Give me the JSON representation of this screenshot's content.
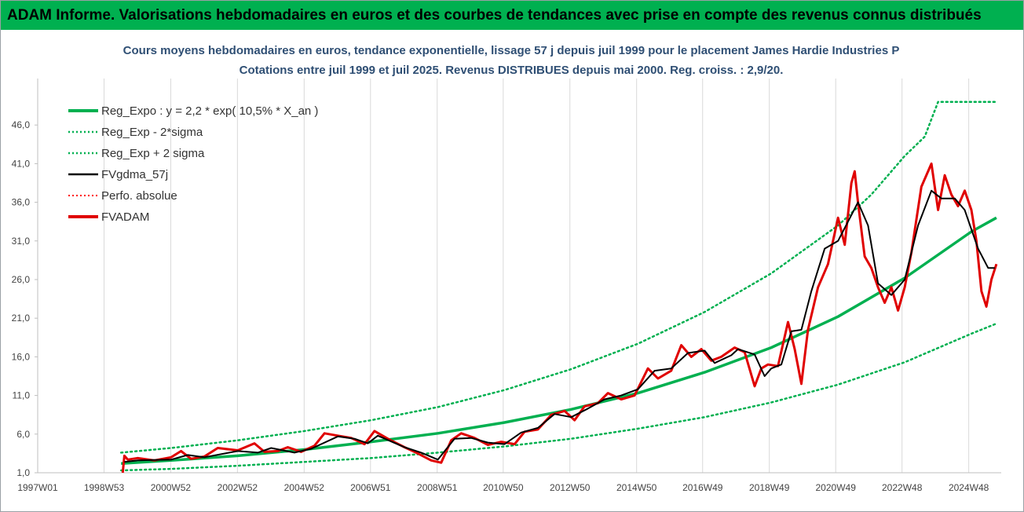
{
  "banner": {
    "title": "ADAM Informe. Valorisations hebdomadaires en euros et des courbes de tendances avec prise en compte des revenus connus distribués"
  },
  "chart_data": {
    "type": "line",
    "title": "Cours moyens hebdomadaires en euros, tendance exponentielle, lissage 57 j depuis juil 1999 pour le placement James Hardie Industries P",
    "subtitle": "Cotations entre juil 1999 et juil 2025. Revenus DISTRIBUES depuis mai 2000. Reg. croiss. : 2,9/20.",
    "xlabel": "",
    "ylabel": "",
    "x_tick_labels": [
      "1997W01",
      "1998W53",
      "2000W52",
      "2002W52",
      "2004W52",
      "2006W51",
      "2008W51",
      "2010W50",
      "2012W50",
      "2014W50",
      "2016W49",
      "2018W49",
      "2020W49",
      "2022W48",
      "2024W48"
    ],
    "x_tick_years": [
      1997.0,
      1998.99,
      2000.99,
      2002.99,
      2004.99,
      2006.98,
      2008.98,
      2010.96,
      2012.96,
      2014.96,
      2016.94,
      2018.94,
      2020.93,
      2022.92,
      2024.92
    ],
    "x_range": [
      1997.0,
      2025.8
    ],
    "y_ticks": [
      1.0,
      6.0,
      11.0,
      16.0,
      21.0,
      26.0,
      31.0,
      36.0,
      41.0,
      46.0
    ],
    "y_tick_labels": [
      "1,0",
      "6,0",
      "11,0",
      "16,0",
      "21,0",
      "26,0",
      "31,0",
      "36,0",
      "41,0",
      "46,0"
    ],
    "ylim": [
      1.0,
      51.0
    ],
    "grid": "vertical",
    "legend_position": "top-left",
    "series": [
      {
        "name": "Reg_Expo : y = 2,2 * exp( 10,5% *  X_an )",
        "color": "#00b050",
        "style": "solid",
        "width": 3.5,
        "x": [
          1999.5,
          2001,
          2003,
          2005,
          2007,
          2009,
          2011,
          2013,
          2015,
          2017,
          2019,
          2021,
          2023,
          2025,
          2025.75
        ],
        "values": [
          2.2,
          2.6,
          3.2,
          4.0,
          5.0,
          6.1,
          7.5,
          9.2,
          11.3,
          14.0,
          17.2,
          21.2,
          26.2,
          32.2,
          34.0
        ]
      },
      {
        "name": "Reg_Exp - 2*sigma",
        "color": "#00b050",
        "style": "dotted",
        "width": 2.5,
        "x": [
          1999.5,
          2001,
          2003,
          2005,
          2007,
          2009,
          2011,
          2013,
          2015,
          2017,
          2019,
          2021,
          2023,
          2025,
          2025.75
        ],
        "values": [
          1.3,
          1.5,
          1.9,
          2.4,
          2.9,
          3.6,
          4.4,
          5.4,
          6.7,
          8.2,
          10.1,
          12.4,
          15.3,
          19.0,
          20.3
        ]
      },
      {
        "name": "Reg_Exp + 2 sigma",
        "color": "#00b050",
        "style": "dotted",
        "width": 2.5,
        "x": [
          1999.5,
          2001,
          2003,
          2005,
          2007,
          2009,
          2011,
          2013,
          2015,
          2017,
          2019,
          2021,
          2022,
          2023,
          2023.6,
          2024,
          2025,
          2025.75
        ],
        "values": [
          3.6,
          4.2,
          5.2,
          6.4,
          7.8,
          9.5,
          11.7,
          14.4,
          17.7,
          21.8,
          26.8,
          33.0,
          37.0,
          42.0,
          44.5,
          49.0,
          49.0,
          49.0
        ]
      },
      {
        "name": "FVgdma_57j",
        "color": "#000000",
        "style": "solid",
        "width": 2,
        "x": [
          1999.6,
          2000,
          2001,
          2001.5,
          2002,
          2003,
          2003.6,
          2004,
          2004.7,
          2005.2,
          2006,
          2006.5,
          2006.9,
          2007.2,
          2008,
          2008.5,
          2009,
          2009.5,
          2010,
          2010.5,
          2011,
          2011.5,
          2012,
          2012.5,
          2013,
          2013.5,
          2014,
          2014.5,
          2015,
          2015.5,
          2016,
          2016.5,
          2017,
          2017.3,
          2017.8,
          2018,
          2018.5,
          2018.8,
          2019,
          2019.3,
          2019.6,
          2019.9,
          2020.2,
          2020.6,
          2021,
          2021.3,
          2021.6,
          2021.9,
          2022.2,
          2022.6,
          2023,
          2023.4,
          2023.8,
          2024.1,
          2024.5,
          2024.8,
          2025.2,
          2025.5,
          2025.7
        ],
        "values": [
          2.4,
          2.6,
          2.7,
          3.3,
          3.0,
          3.8,
          3.6,
          4.2,
          3.6,
          4.1,
          5.7,
          5.4,
          4.8,
          5.8,
          4.3,
          3.6,
          2.7,
          5.4,
          5.5,
          4.9,
          4.7,
          6.2,
          6.8,
          8.6,
          8.2,
          9.3,
          10.5,
          11.0,
          11.8,
          14.2,
          14.5,
          16.5,
          16.8,
          15.2,
          16.2,
          17.0,
          16.3,
          13.5,
          14.5,
          15.0,
          19.3,
          19.5,
          24.5,
          30.0,
          31.0,
          33.5,
          36.0,
          33.0,
          25.5,
          24.0,
          26.0,
          33.0,
          37.5,
          36.5,
          36.5,
          35.0,
          30.0,
          27.5,
          27.5
        ]
      },
      {
        "name": "Perfo. absolue",
        "color": "#ff0000",
        "style": "dotted",
        "width": 2,
        "x": [],
        "values": []
      },
      {
        "name": "FVADAM",
        "color": "#e00000",
        "style": "solid",
        "width": 3,
        "x": [
          1999.55,
          1999.6,
          1999.7,
          2000,
          2000.5,
          2001,
          2001.3,
          2001.6,
          2002,
          2002.4,
          2003,
          2003.5,
          2003.8,
          2004.2,
          2004.5,
          2004.9,
          2005.3,
          2005.6,
          2006,
          2006.4,
          2006.8,
          2007.1,
          2007.5,
          2008,
          2008.4,
          2008.8,
          2009.1,
          2009.4,
          2009.7,
          2010.1,
          2010.5,
          2010.9,
          2011.3,
          2011.6,
          2012,
          2012.4,
          2012.8,
          2013.1,
          2013.4,
          2013.8,
          2014.1,
          2014.5,
          2014.9,
          2015.3,
          2015.6,
          2016,
          2016.3,
          2016.6,
          2016.9,
          2017.2,
          2017.5,
          2017.9,
          2018.2,
          2018.5,
          2018.7,
          2018.9,
          2019.2,
          2019.5,
          2019.7,
          2019.9,
          2020.1,
          2020.4,
          2020.7,
          2021,
          2021.2,
          2021.4,
          2021.5,
          2021.6,
          2021.8,
          2022,
          2022.2,
          2022.4,
          2022.6,
          2022.8,
          2023,
          2023.2,
          2023.5,
          2023.8,
          2024,
          2024.2,
          2024.4,
          2024.6,
          2024.8,
          2025,
          2025.15,
          2025.3,
          2025.45,
          2025.6,
          2025.75
        ],
        "values": [
          1.0,
          3.2,
          2.7,
          2.9,
          2.6,
          3.0,
          3.8,
          2.8,
          3.1,
          4.2,
          3.9,
          4.8,
          3.7,
          3.8,
          4.3,
          3.7,
          4.5,
          6.1,
          5.8,
          5.5,
          4.7,
          6.4,
          5.4,
          4.3,
          3.5,
          2.6,
          2.3,
          5.2,
          6.1,
          5.5,
          4.6,
          5.0,
          4.7,
          6.3,
          6.6,
          8.5,
          9.0,
          7.8,
          9.6,
          10.0,
          11.3,
          10.5,
          11.0,
          14.5,
          13.2,
          14.2,
          17.5,
          16.0,
          17.0,
          15.5,
          16.0,
          17.2,
          16.6,
          12.2,
          14.5,
          15.0,
          14.8,
          20.5,
          17.0,
          12.5,
          19.5,
          25.0,
          28.0,
          34.0,
          30.5,
          38.5,
          40.0,
          36.0,
          29.0,
          27.5,
          25.0,
          23.0,
          25.0,
          22.0,
          25.0,
          29.5,
          38.0,
          41.0,
          35.0,
          39.5,
          37.0,
          35.5,
          37.5,
          35.0,
          31.0,
          24.5,
          22.5,
          26.0,
          28.0
        ]
      }
    ]
  }
}
